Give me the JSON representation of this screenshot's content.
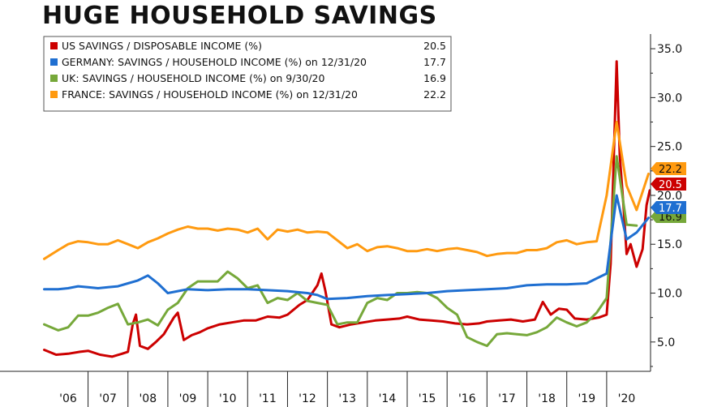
{
  "page": {
    "title": "HUGE HOUSEHOLD SAVINGS"
  },
  "chart_data": {
    "type": "line",
    "title": "HUGE HOUSEHOLD SAVINGS",
    "xlabel": "",
    "ylabel": "",
    "ylim": [
      2.0,
      36.5
    ],
    "xlim": [
      2005.85,
      2021.1
    ],
    "y_ticks": [
      "5.0",
      "10.0",
      "15.0",
      "20.0",
      "25.0",
      "30.0",
      "35.0"
    ],
    "x_ticks": [
      "'06",
      "'07",
      "'08",
      "'09",
      "'10",
      "'11",
      "'12",
      "'13",
      "'14",
      "'15",
      "'16",
      "'17",
      "'18",
      "'19",
      "'20"
    ],
    "grid": false,
    "legend_position": "top-left",
    "series": [
      {
        "name": "US SAVINGS / DISPOSABLE INCOME (%)",
        "last_value": "20.5",
        "color": "#cc0000",
        "x": [
          2005.9,
          2006.2,
          2006.5,
          2006.8,
          2007.0,
          2007.3,
          2007.6,
          2007.85,
          2008.0,
          2008.12,
          2008.2,
          2008.3,
          2008.5,
          2008.7,
          2008.9,
          2009.15,
          2009.25,
          2009.4,
          2009.6,
          2009.8,
          2010.0,
          2010.3,
          2010.6,
          2010.9,
          2011.2,
          2011.5,
          2011.8,
          2012.0,
          2012.3,
          2012.5,
          2012.75,
          2012.85,
          2012.95,
          2013.1,
          2013.3,
          2013.6,
          2013.9,
          2014.2,
          2014.5,
          2014.8,
          2015.0,
          2015.3,
          2015.6,
          2015.9,
          2016.2,
          2016.5,
          2016.8,
          2017.0,
          2017.3,
          2017.6,
          2017.9,
          2018.2,
          2018.4,
          2018.6,
          2018.8,
          2019.0,
          2019.2,
          2019.5,
          2019.8,
          2020.0,
          2020.1,
          2020.25,
          2020.33,
          2020.42,
          2020.5,
          2020.6,
          2020.75,
          2020.9,
          2021.0,
          2021.08
        ],
        "y": [
          4.2,
          3.7,
          3.8,
          4.0,
          4.1,
          3.7,
          3.5,
          3.8,
          4.0,
          6.8,
          7.8,
          4.6,
          4.3,
          5.0,
          5.8,
          7.5,
          8.0,
          5.2,
          5.7,
          6.0,
          6.4,
          6.8,
          7.0,
          7.2,
          7.2,
          7.6,
          7.5,
          7.8,
          8.8,
          9.3,
          10.8,
          12.0,
          10.2,
          6.8,
          6.5,
          6.8,
          7.0,
          7.2,
          7.3,
          7.4,
          7.6,
          7.3,
          7.2,
          7.1,
          6.9,
          6.8,
          6.9,
          7.1,
          7.2,
          7.3,
          7.1,
          7.3,
          9.1,
          7.8,
          8.4,
          8.3,
          7.4,
          7.3,
          7.5,
          7.8,
          13.0,
          33.7,
          24.0,
          19.0,
          14.0,
          15.0,
          12.7,
          14.5,
          19.0,
          20.5
        ]
      },
      {
        "name": "GERMANY: SAVINGS / HOUSEHOLD INCOME (%) on 12/31/20",
        "last_value": "17.7",
        "color": "#1f6fd1",
        "x": [
          2005.9,
          2006.25,
          2006.5,
          2006.75,
          2007.0,
          2007.25,
          2007.5,
          2007.75,
          2008.0,
          2008.25,
          2008.5,
          2008.75,
          2009.0,
          2009.25,
          2009.5,
          2010.0,
          2010.5,
          2011.0,
          2011.5,
          2012.0,
          2012.5,
          2012.75,
          2013.0,
          2013.5,
          2014.0,
          2014.5,
          2015.0,
          2015.5,
          2016.0,
          2016.5,
          2017.0,
          2017.5,
          2018.0,
          2018.5,
          2019.0,
          2019.5,
          2019.75,
          2020.0,
          2020.25,
          2020.5,
          2020.75,
          2021.05
        ],
        "y": [
          10.4,
          10.4,
          10.5,
          10.7,
          10.6,
          10.5,
          10.6,
          10.7,
          11.0,
          11.3,
          11.8,
          11.0,
          10.0,
          10.2,
          10.4,
          10.3,
          10.4,
          10.4,
          10.3,
          10.2,
          10.0,
          9.8,
          9.4,
          9.5,
          9.7,
          9.8,
          9.9,
          10.0,
          10.2,
          10.3,
          10.4,
          10.5,
          10.8,
          10.9,
          10.9,
          11.0,
          11.5,
          12.0,
          20.0,
          15.5,
          16.2,
          17.7
        ]
      },
      {
        "name": "UK: SAVINGS / HOUSEHOLD INCOME (%) on 9/30/20",
        "last_value": "16.9",
        "color": "#76a83a",
        "x": [
          2005.9,
          2006.25,
          2006.5,
          2006.75,
          2007.0,
          2007.25,
          2007.5,
          2007.75,
          2008.0,
          2008.25,
          2008.5,
          2008.75,
          2009.0,
          2009.25,
          2009.5,
          2009.75,
          2010.0,
          2010.25,
          2010.5,
          2010.75,
          2011.0,
          2011.25,
          2011.5,
          2011.75,
          2012.0,
          2012.25,
          2012.5,
          2012.75,
          2013.0,
          2013.25,
          2013.5,
          2013.75,
          2014.0,
          2014.25,
          2014.5,
          2014.75,
          2015.0,
          2015.25,
          2015.5,
          2015.75,
          2016.0,
          2016.25,
          2016.5,
          2016.75,
          2017.0,
          2017.25,
          2017.5,
          2017.75,
          2018.0,
          2018.25,
          2018.5,
          2018.75,
          2019.0,
          2019.25,
          2019.5,
          2019.75,
          2020.0,
          2020.25,
          2020.5,
          2020.75
        ],
        "y": [
          6.8,
          6.2,
          6.5,
          7.7,
          7.7,
          8.0,
          8.5,
          8.9,
          6.8,
          7.0,
          7.3,
          6.7,
          8.3,
          9.0,
          10.5,
          11.2,
          11.2,
          11.2,
          12.2,
          11.5,
          10.5,
          10.8,
          9.0,
          9.5,
          9.3,
          10.0,
          9.2,
          9.0,
          8.8,
          6.8,
          7.0,
          7.0,
          9.0,
          9.5,
          9.3,
          10.0,
          10.0,
          10.1,
          10.0,
          9.5,
          8.5,
          7.8,
          5.5,
          5.0,
          4.6,
          5.8,
          5.9,
          5.8,
          5.7,
          6.0,
          6.5,
          7.5,
          7.0,
          6.6,
          7.0,
          8.0,
          9.5,
          24.0,
          17.0,
          16.9
        ]
      },
      {
        "name": "FRANCE: SAVINGS / HOUSEHOLD INCOME (%) on 12/31/20",
        "last_value": "22.2",
        "color": "#ff9a10",
        "x": [
          2005.9,
          2006.25,
          2006.5,
          2006.75,
          2007.0,
          2007.25,
          2007.5,
          2007.75,
          2008.0,
          2008.25,
          2008.5,
          2008.75,
          2009.0,
          2009.25,
          2009.5,
          2009.75,
          2010.0,
          2010.25,
          2010.5,
          2010.75,
          2011.0,
          2011.25,
          2011.5,
          2011.75,
          2012.0,
          2012.25,
          2012.5,
          2012.75,
          2013.0,
          2013.25,
          2013.5,
          2013.75,
          2014.0,
          2014.25,
          2014.5,
          2014.75,
          2015.0,
          2015.25,
          2015.5,
          2015.75,
          2016.0,
          2016.25,
          2016.5,
          2016.75,
          2017.0,
          2017.25,
          2017.5,
          2017.75,
          2018.0,
          2018.25,
          2018.5,
          2018.75,
          2019.0,
          2019.25,
          2019.5,
          2019.75,
          2020.0,
          2020.25,
          2020.5,
          2020.75,
          2021.05
        ],
        "y": [
          13.5,
          14.4,
          15.0,
          15.3,
          15.2,
          15.0,
          15.0,
          15.4,
          15.0,
          14.6,
          15.2,
          15.6,
          16.1,
          16.5,
          16.8,
          16.6,
          16.6,
          16.4,
          16.6,
          16.5,
          16.2,
          16.6,
          15.5,
          16.5,
          16.3,
          16.5,
          16.2,
          16.3,
          16.2,
          15.4,
          14.6,
          15.0,
          14.3,
          14.7,
          14.8,
          14.6,
          14.3,
          14.3,
          14.5,
          14.3,
          14.5,
          14.6,
          14.4,
          14.2,
          13.8,
          14.0,
          14.1,
          14.1,
          14.4,
          14.4,
          14.6,
          15.2,
          15.4,
          15.0,
          15.2,
          15.3,
          20.0,
          27.5,
          21.0,
          18.5,
          22.2
        ]
      }
    ]
  }
}
